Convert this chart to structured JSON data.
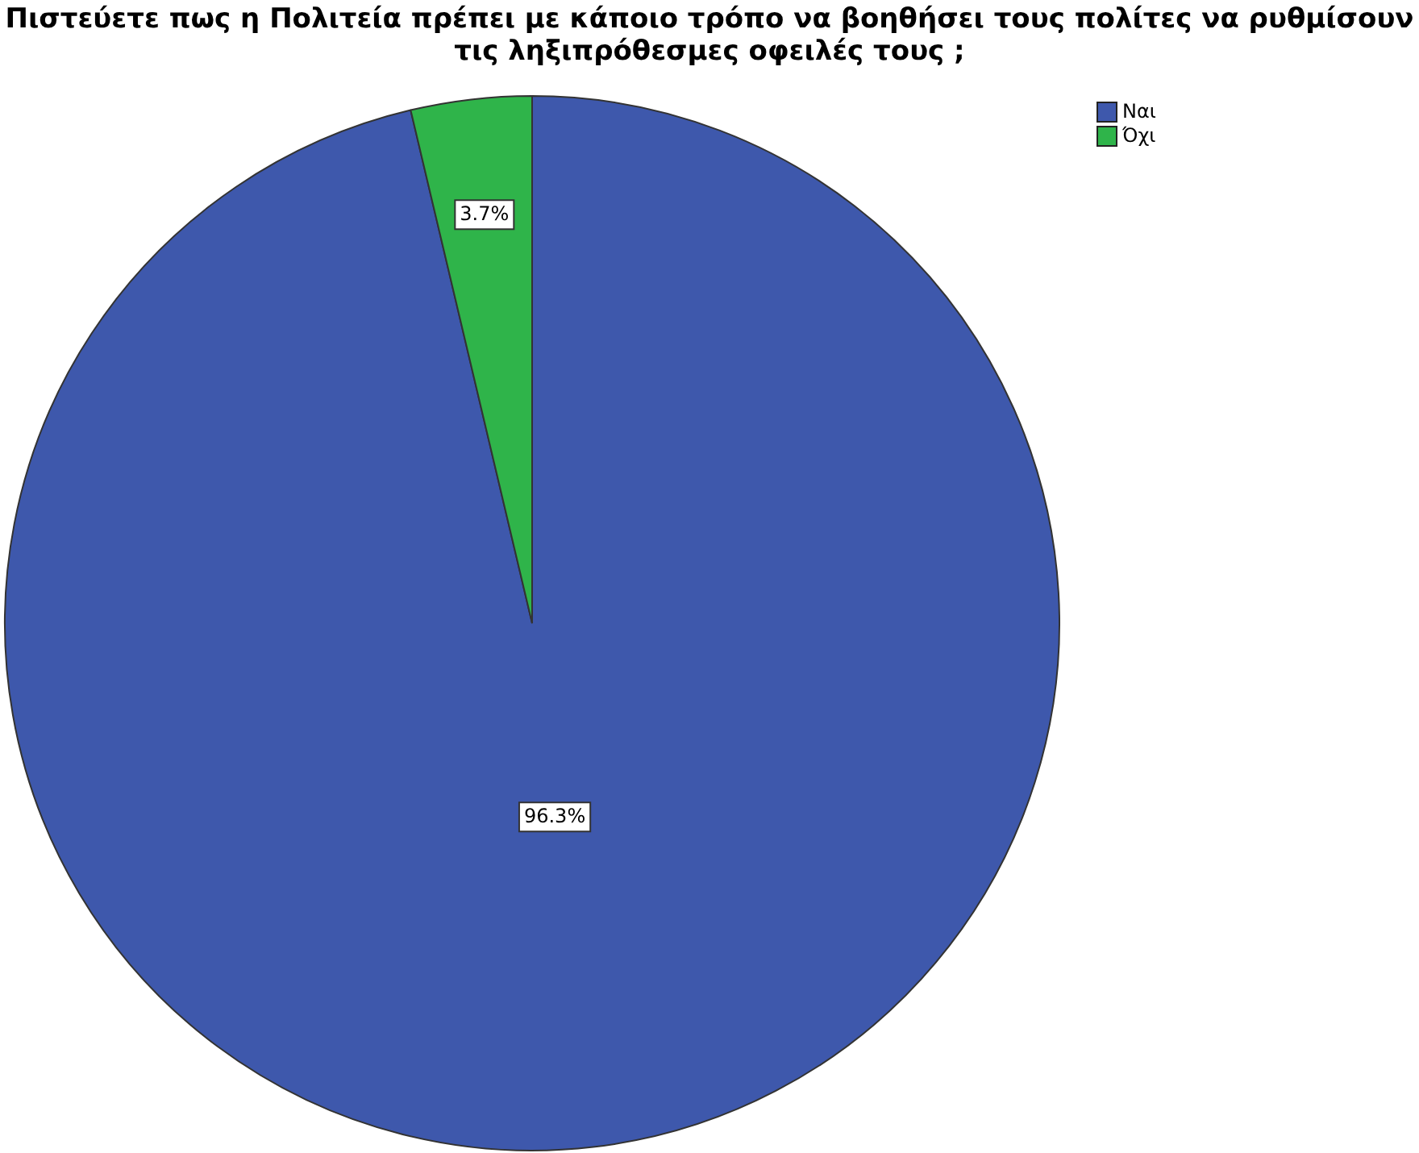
{
  "chart_data": {
    "type": "pie",
    "title": "Πιστεύετε πως η Πολιτεία πρέπει με κάποιο τρόπο να βοηθήσει τους πολίτες να ρυθμίσουν τις ληξιπρόθεσμες οφειλές τους ;",
    "categories": [
      "Ναι",
      "Όχι"
    ],
    "values": [
      96.3,
      3.7
    ],
    "colors": [
      "#3e58ac",
      "#2fb44a"
    ],
    "value_labels": [
      "96.3%",
      "3.7%"
    ],
    "legend": "top right"
  }
}
